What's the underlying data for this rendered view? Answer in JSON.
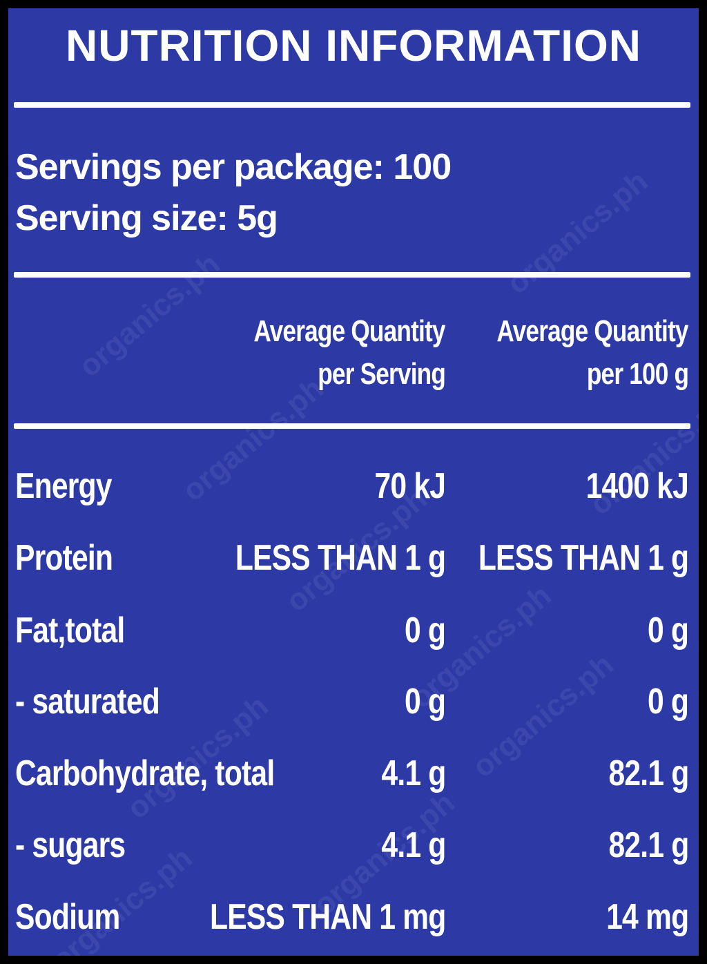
{
  "header": {
    "title": "NUTRITION INFORMATION"
  },
  "servings": [
    "Servings per package: 100",
    "Serving size: 5g"
  ],
  "table": {
    "columns": [
      [
        "Average Quantity",
        "per Serving"
      ],
      [
        "Average Quantity",
        "per 100 g"
      ]
    ],
    "rows": [
      [
        "Energy",
        "70 kJ",
        "1400 kJ"
      ],
      [
        "Protein",
        "LESS THAN 1 g",
        "LESS THAN 1 g"
      ],
      [
        "Fat,total",
        "0 g",
        "0 g"
      ],
      [
        "- saturated",
        "0 g",
        "0 g"
      ],
      [
        "Carbohydrate, total",
        "4.1 g",
        "82.1 g"
      ],
      [
        "- sugars",
        "4.1 g",
        "82.1 g"
      ],
      [
        "Sodium",
        "LESS THAN 1 mg",
        "14 mg"
      ]
    ]
  },
  "watermark": "organics.ph"
}
